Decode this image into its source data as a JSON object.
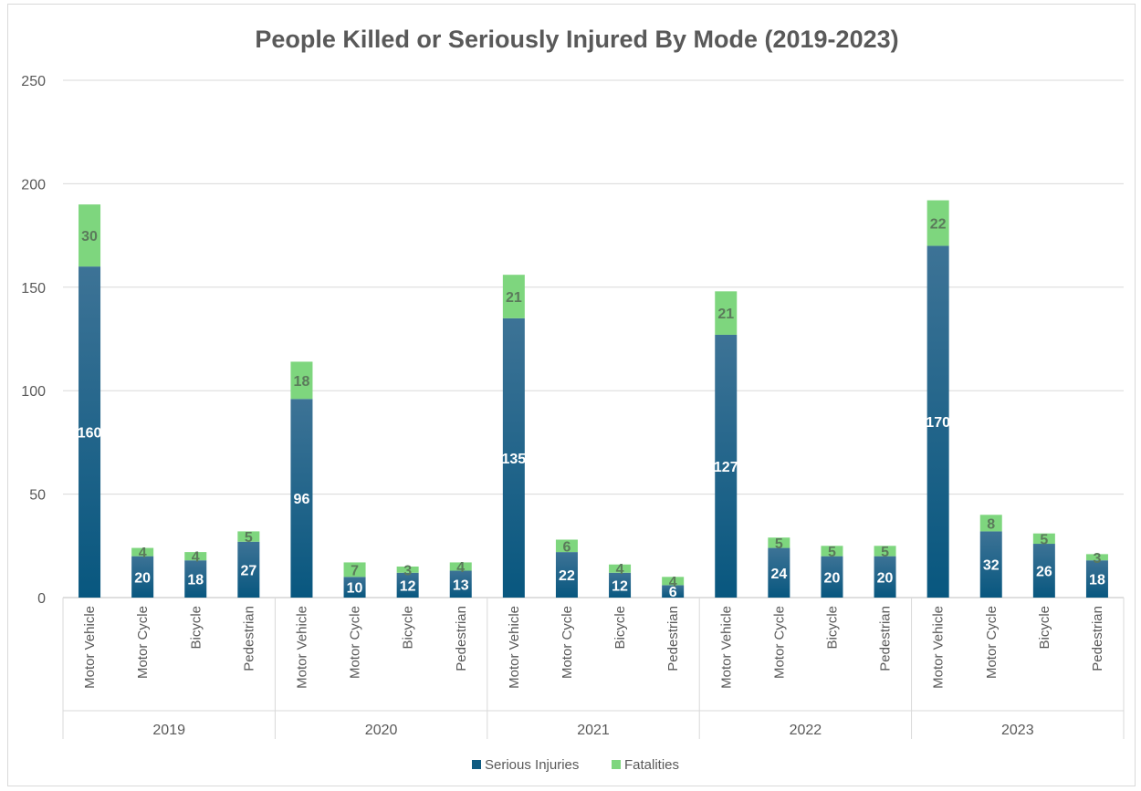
{
  "chart_data": {
    "type": "bar",
    "stacked": true,
    "title": "People Killed or Seriously Injured By Mode (2019-2023)",
    "xlabel": "",
    "ylabel": "",
    "ylim": [
      0,
      250
    ],
    "yticks": [
      0,
      50,
      100,
      150,
      200,
      250
    ],
    "grid": true,
    "legend_position": "bottom",
    "groups": [
      {
        "label": "2019",
        "categories": [
          "Motor Vehicle",
          "Motor Cycle",
          "Bicycle",
          "Pedestrian"
        ]
      },
      {
        "label": "2020",
        "categories": [
          "Motor Vehicle",
          "Motor Cycle",
          "Bicycle",
          "Pedestrian"
        ]
      },
      {
        "label": "2021",
        "categories": [
          "Motor Vehicle",
          "Motor Cycle",
          "Bicycle",
          "Pedestrian"
        ]
      },
      {
        "label": "2022",
        "categories": [
          "Motor Vehicle",
          "Motor Cycle",
          "Bicycle",
          "Pedestrian"
        ]
      },
      {
        "label": "2023",
        "categories": [
          "Motor Vehicle",
          "Motor Cycle",
          "Bicycle",
          "Pedestrian"
        ]
      }
    ],
    "series": [
      {
        "name": "Serious Injuries",
        "color": "#0e5a80",
        "values": [
          160,
          20,
          18,
          27,
          96,
          10,
          12,
          13,
          135,
          22,
          12,
          6,
          127,
          24,
          20,
          20,
          170,
          32,
          26,
          18
        ]
      },
      {
        "name": "Fatalities",
        "color": "#7ed67e",
        "values": [
          30,
          4,
          4,
          5,
          18,
          7,
          3,
          4,
          21,
          6,
          4,
          4,
          21,
          5,
          5,
          5,
          22,
          8,
          5,
          3
        ]
      }
    ]
  }
}
